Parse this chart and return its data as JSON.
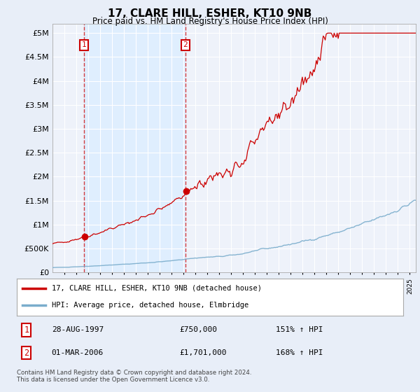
{
  "title": "17, CLARE HILL, ESHER, KT10 9NB",
  "subtitle": "Price paid vs. HM Land Registry's House Price Index (HPI)",
  "ytick_vals": [
    0,
    500000,
    1000000,
    1500000,
    2000000,
    2500000,
    3000000,
    3500000,
    4000000,
    4500000,
    5000000
  ],
  "ylim": [
    0,
    5200000
  ],
  "sale1_year": 1997.648,
  "sale1_price": 750000,
  "sale2_year": 2006.163,
  "sale2_price": 1701000,
  "sale1_date": "28-AUG-1997",
  "sale1_hpi": "151% ↑ HPI",
  "sale2_date": "01-MAR-2006",
  "sale2_hpi": "168% ↑ HPI",
  "legend_line1": "17, CLARE HILL, ESHER, KT10 9NB (detached house)",
  "legend_line2": "HPI: Average price, detached house, Elmbridge",
  "footnote": "Contains HM Land Registry data © Crown copyright and database right 2024.\nThis data is licensed under the Open Government Licence v3.0.",
  "line_color_red": "#cc0000",
  "line_color_blue": "#7aadcc",
  "shade_color": "#ddeeff",
  "bg_color": "#e8eef8",
  "plot_bg_color": "#eef2fa"
}
